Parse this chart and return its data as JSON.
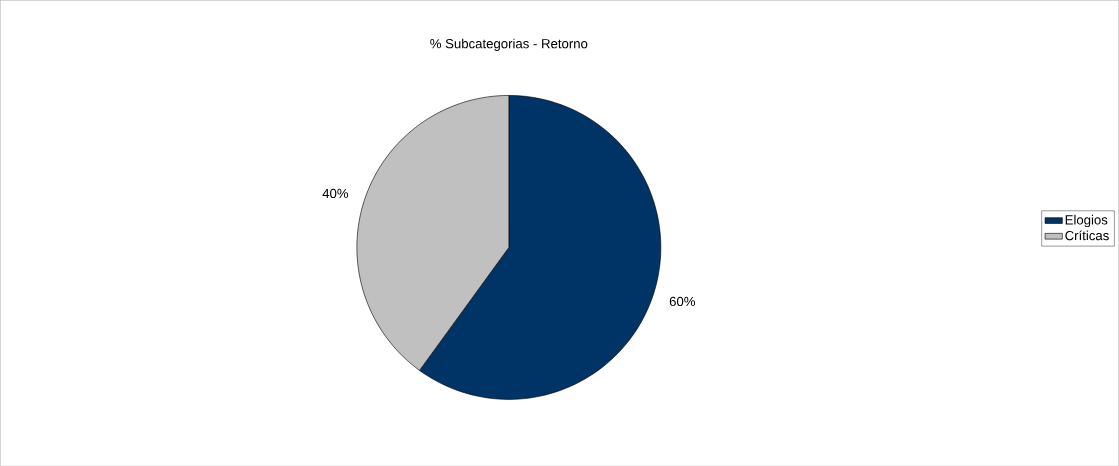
{
  "chart_data": {
    "type": "pie",
    "title": "% Subcategorias - Retorno",
    "categories": [
      "Elogios",
      "Críticas"
    ],
    "values": [
      60,
      40
    ],
    "colors": [
      "#003366",
      "#c0c0c0"
    ],
    "value_labels": [
      "60%",
      "40%"
    ],
    "legend": "right"
  }
}
